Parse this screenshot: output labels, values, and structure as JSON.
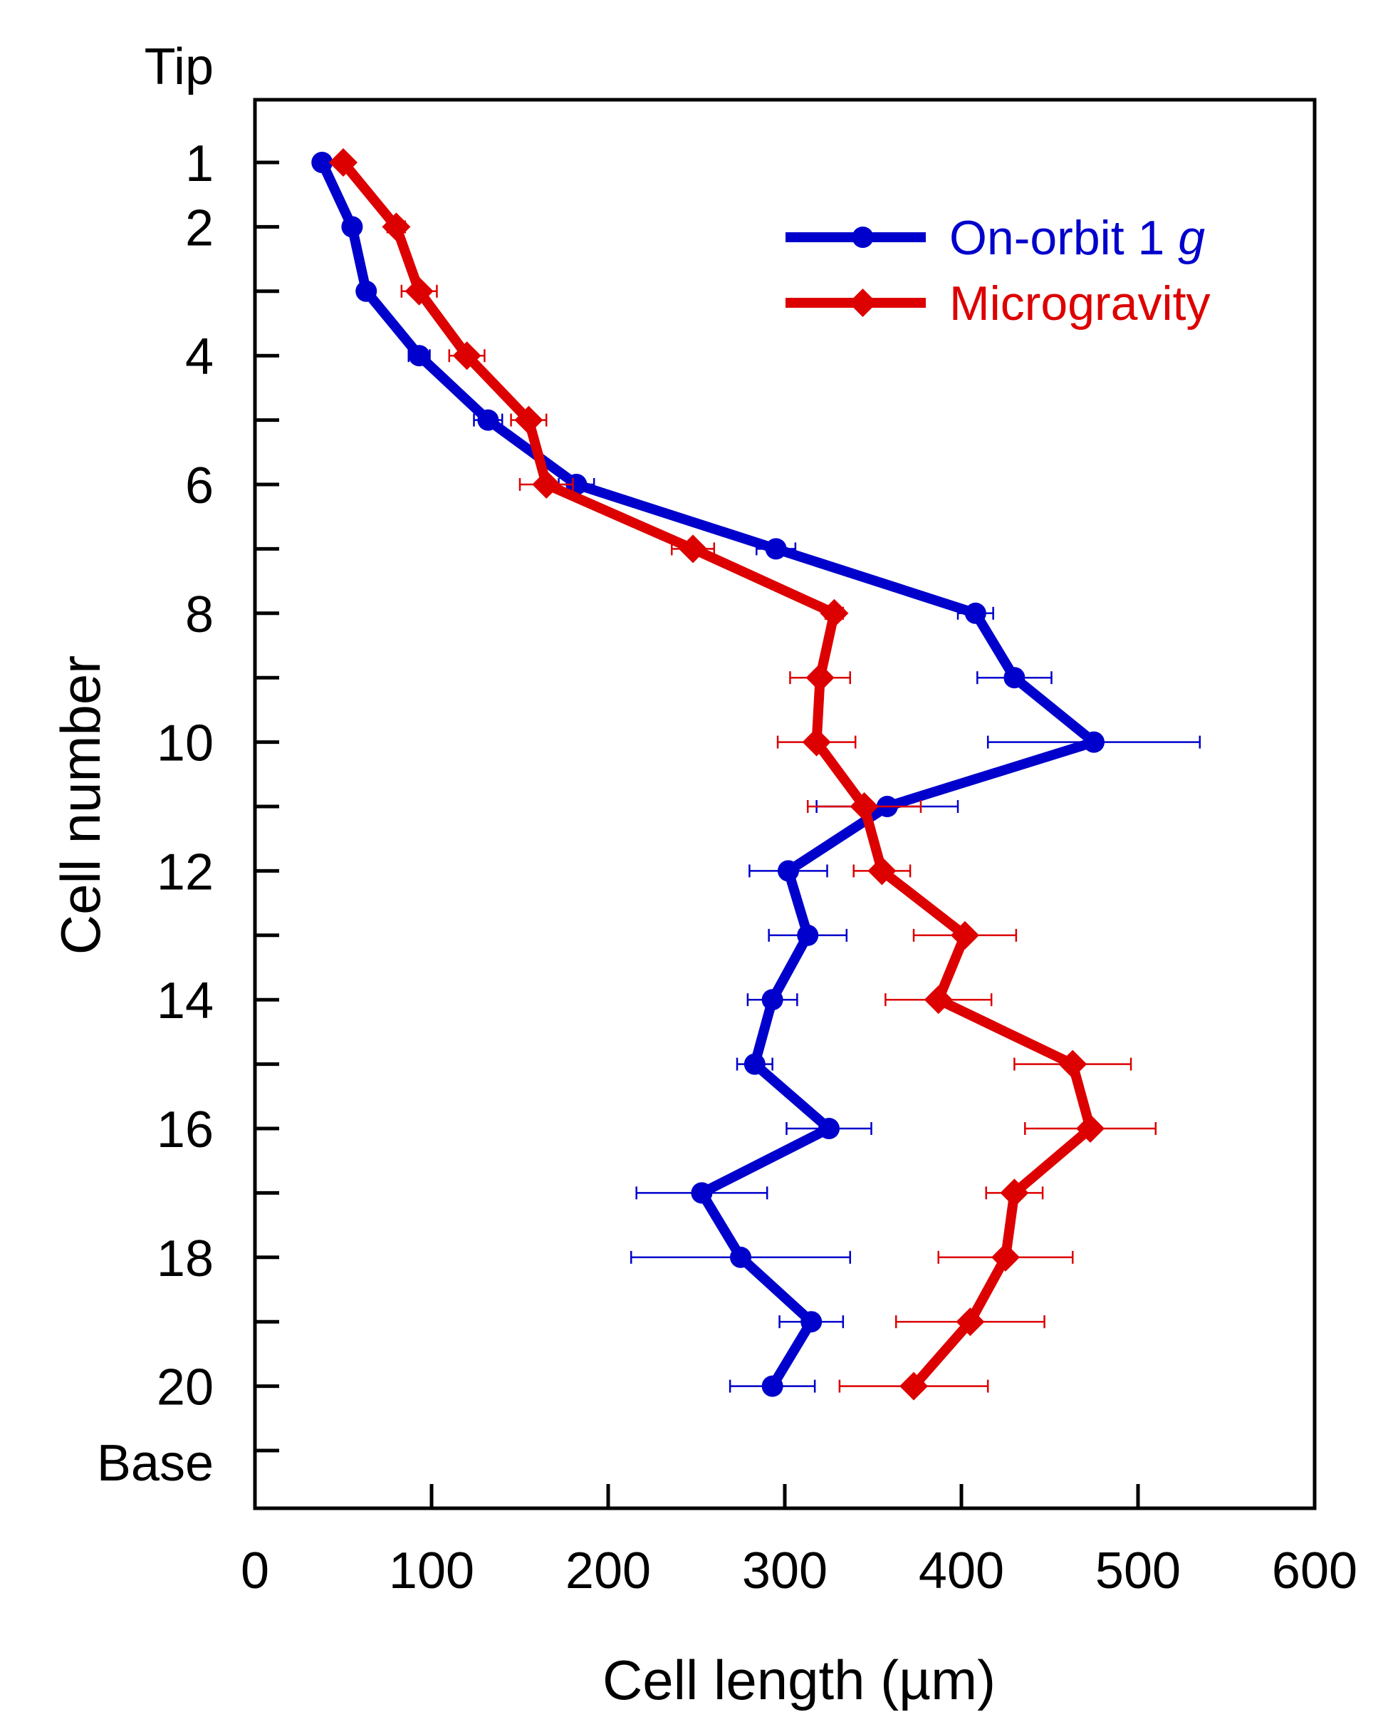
{
  "chart_data": {
    "type": "line",
    "title": "",
    "xlabel": "Cell length (µm)",
    "ylabel": "Cell number",
    "xlim": [
      0,
      600
    ],
    "ylim": [
      -0.5,
      21.25
    ],
    "x_ticks": [
      0,
      100,
      200,
      300,
      400,
      500,
      600
    ],
    "x_tick_labels": [
      "0",
      "100",
      "200",
      "300",
      "400",
      "500",
      "600"
    ],
    "y_ticks": [
      1,
      2,
      3,
      4,
      5,
      6,
      7,
      8,
      9,
      10,
      11,
      12,
      13,
      14,
      15,
      16,
      17,
      18,
      19,
      20,
      21
    ],
    "y_tick_labels": [
      {
        "y": -0.5,
        "text": "Tip"
      },
      {
        "y": 1,
        "text": "1"
      },
      {
        "y": 2,
        "text": "2"
      },
      {
        "y": 4,
        "text": "4"
      },
      {
        "y": 6,
        "text": "6"
      },
      {
        "y": 8,
        "text": "8"
      },
      {
        "y": 10,
        "text": "10"
      },
      {
        "y": 12,
        "text": "12"
      },
      {
        "y": 14,
        "text": "14"
      },
      {
        "y": 16,
        "text": "16"
      },
      {
        "y": 18,
        "text": "18"
      },
      {
        "y": 20,
        "text": "20"
      },
      {
        "y": 21.3,
        "text": "Base"
      }
    ],
    "legend_position": "top-right",
    "series": [
      {
        "name": "On-orbit 1 g",
        "name_prefix": "On-orbit 1 ",
        "name_italic": "g",
        "color": "#0000cc",
        "marker": "circle",
        "cell": [
          1,
          2,
          3,
          4,
          5,
          6,
          7,
          8,
          9,
          10,
          11,
          12,
          13,
          14,
          15,
          16,
          17,
          18,
          19,
          20
        ],
        "length": [
          38,
          55,
          63,
          93,
          132,
          182,
          295,
          408,
          430,
          475,
          358,
          302,
          313,
          293,
          283,
          325,
          253,
          275,
          315,
          293
        ],
        "error": [
          3,
          4,
          4,
          6,
          8,
          10,
          11,
          10,
          21,
          60,
          40,
          22,
          22,
          14,
          10,
          24,
          37,
          62,
          18,
          24
        ]
      },
      {
        "name": "Microgravity",
        "color": "#dd0000",
        "marker": "diamond",
        "cell": [
          1,
          2,
          3,
          4,
          5,
          6,
          7,
          8,
          9,
          10,
          11,
          12,
          13,
          14,
          15,
          16,
          17,
          18,
          19,
          20
        ],
        "length": [
          50,
          80,
          93,
          120,
          155,
          165,
          248,
          328,
          320,
          318,
          345,
          355,
          402,
          387,
          463,
          473,
          430,
          425,
          405,
          373
        ],
        "error": [
          3,
          5,
          10,
          10,
          10,
          15,
          12,
          5,
          17,
          22,
          32,
          16,
          29,
          30,
          33,
          37,
          16,
          38,
          42,
          42
        ]
      }
    ]
  }
}
